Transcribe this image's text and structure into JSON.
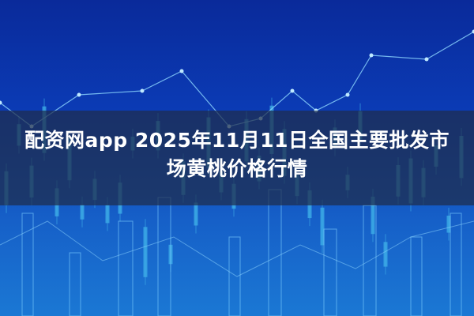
{
  "title": "配资网app 2025年11月11日全国主要批发市场黄桃价格行情",
  "colors": {
    "background": "#0b3bb5",
    "band": "#1e2d4b",
    "candle": "#3fb0e8",
    "text": "#ffffff"
  },
  "background_image": "decorative stock candlestick chart"
}
